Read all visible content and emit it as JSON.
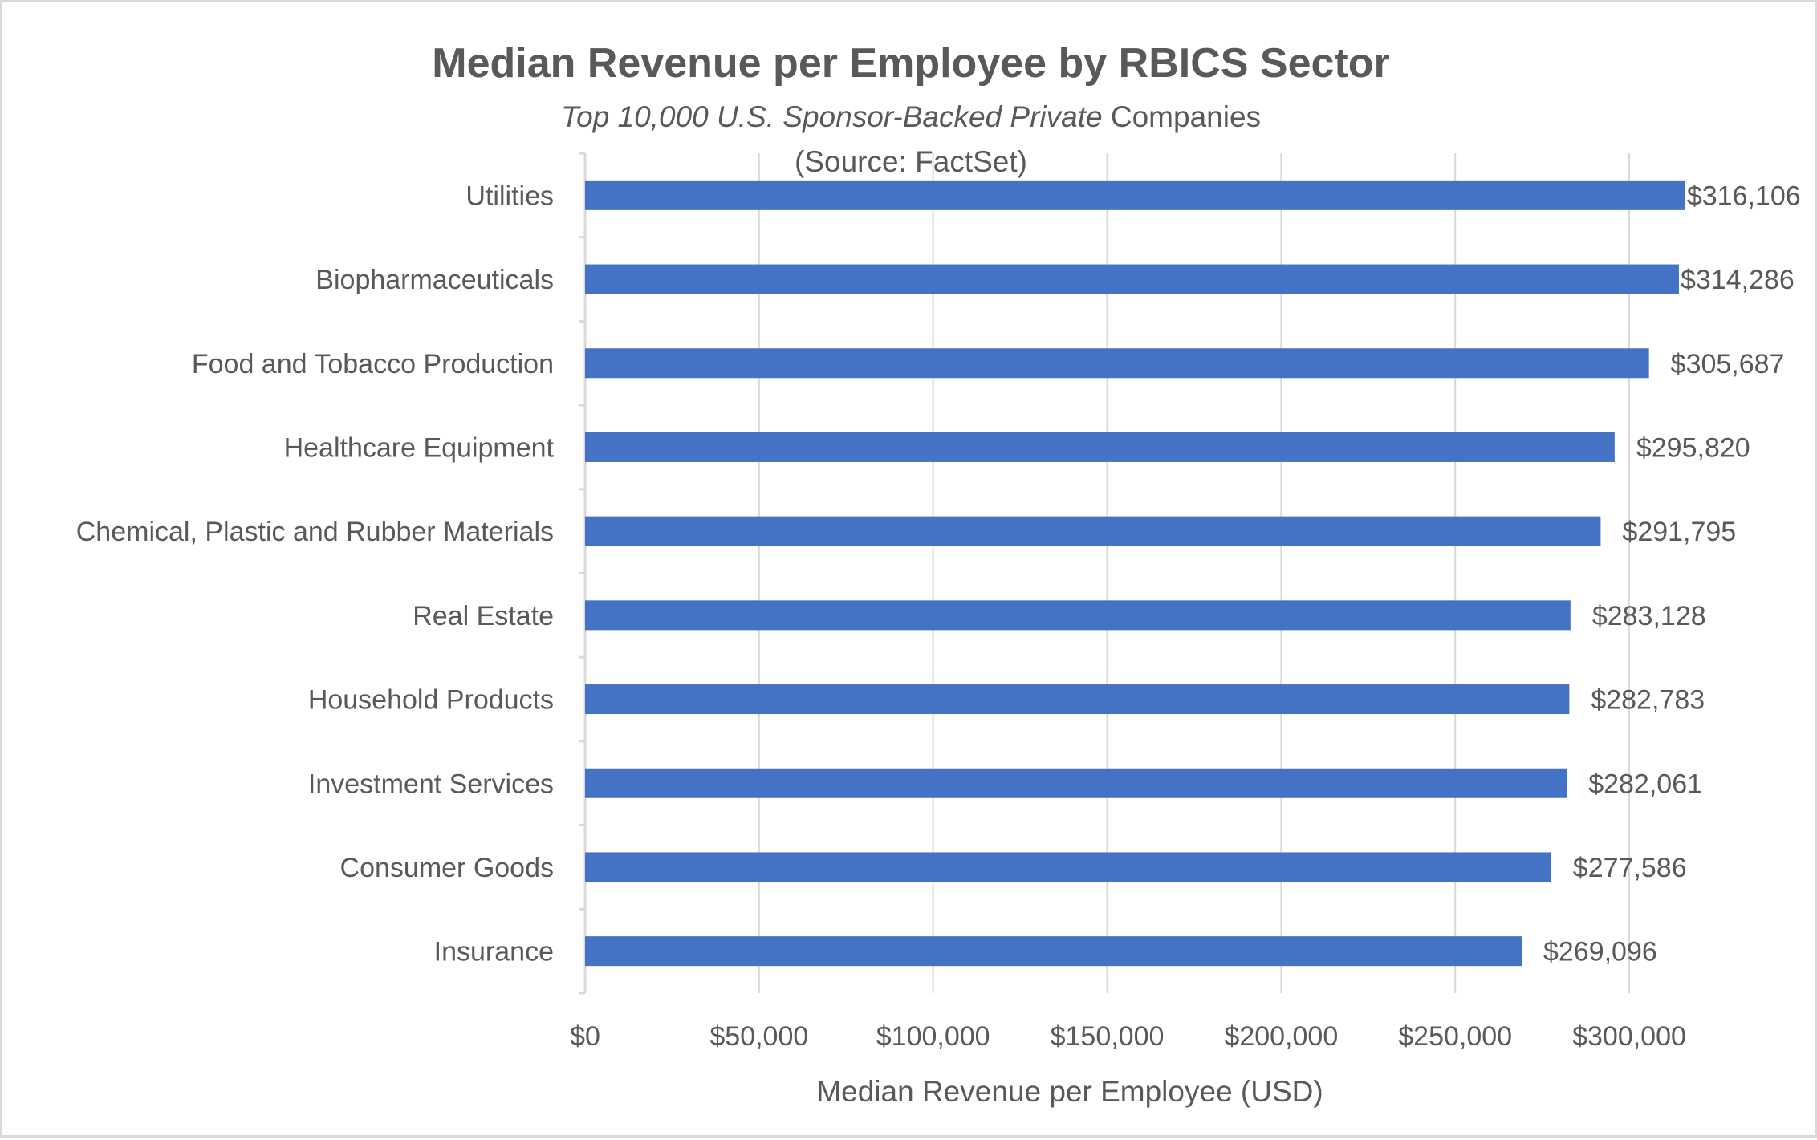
{
  "chart_data": {
    "type": "bar",
    "orientation": "horizontal",
    "title": "Median Revenue per Employee by RBICS Sector",
    "subtitle_italic": "Top 10,000 U.S. Sponsor-Backed Private",
    "subtitle_regular": " Companies",
    "source": "(Source: FactSet)",
    "xlabel": "Median Revenue per Employee (USD)",
    "ylabel": "",
    "xlim": [
      0,
      300000
    ],
    "x_ticks": [
      "$0",
      "$50,000",
      "$100,000",
      "$150,000",
      "$200,000",
      "$250,000",
      "$300,000"
    ],
    "grid": "vertical",
    "bar_color": "#4472C4",
    "categories": [
      "Utilities",
      "Biopharmaceuticals",
      "Food and Tobacco Production",
      "Healthcare Equipment",
      "Chemical, Plastic and Rubber Materials",
      "Real Estate",
      "Household Products",
      "Investment Services",
      "Consumer Goods",
      "Insurance"
    ],
    "values": [
      316106,
      314286,
      305687,
      295820,
      291795,
      283128,
      282783,
      282061,
      277586,
      269096
    ],
    "data_labels": [
      "$316,106",
      "$314,286",
      "$305,687",
      "$295,820",
      "$291,795",
      "$283,128",
      "$282,783",
      "$282,061",
      "$277,586",
      "$269,096"
    ]
  }
}
